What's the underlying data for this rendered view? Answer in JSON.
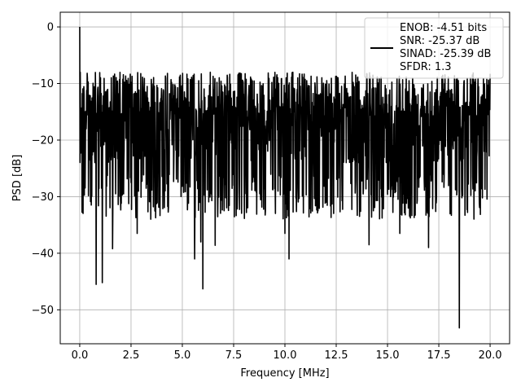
{
  "chart_data": {
    "type": "line",
    "title": "",
    "xlabel": "Frequency [MHz]",
    "ylabel": "PSD [dB]",
    "xlim": [
      -0.95,
      20.95
    ],
    "ylim": [
      -56,
      2.6
    ],
    "xticks": [
      0.0,
      2.5,
      5.0,
      7.5,
      10.0,
      12.5,
      15.0,
      17.5,
      20.0
    ],
    "xtick_labels": [
      "0.0",
      "2.5",
      "5.0",
      "7.5",
      "10.0",
      "12.5",
      "15.0",
      "17.5",
      "20.0"
    ],
    "yticks": [
      0,
      -10,
      -20,
      -30,
      -40,
      -50
    ],
    "ytick_labels": [
      "0",
      "−10",
      "−20",
      "−30",
      "−40",
      "−50"
    ],
    "grid": true,
    "legend_position": "top-right",
    "series": [
      {
        "name": "",
        "color": "#000000",
        "x_range": [
          0.0,
          20.0
        ],
        "peak": {
          "x": 0.0,
          "y": 0.0
        },
        "typical_band": [
          -30,
          -6
        ],
        "dips": [
          {
            "x": 0.8,
            "y": -45.5
          },
          {
            "x": 1.1,
            "y": -45.2
          },
          {
            "x": 1.6,
            "y": -39.2
          },
          {
            "x": 2.8,
            "y": -36.5
          },
          {
            "x": 5.6,
            "y": -41.0
          },
          {
            "x": 5.9,
            "y": -38.0
          },
          {
            "x": 6.0,
            "y": -46.3
          },
          {
            "x": 6.6,
            "y": -38.6
          },
          {
            "x": 10.0,
            "y": -36.5
          },
          {
            "x": 10.2,
            "y": -41.0
          },
          {
            "x": 14.1,
            "y": -38.5
          },
          {
            "x": 15.6,
            "y": -36.5
          },
          {
            "x": 17.0,
            "y": -39.0
          },
          {
            "x": 18.5,
            "y": -53.2
          }
        ]
      }
    ],
    "legend": {
      "swatch_color": "#000000",
      "entries": [
        "ENOB: -4.51 bits",
        "SNR: -25.37 dB",
        "SINAD: -25.39 dB",
        "SFDR: 1.3"
      ]
    }
  }
}
